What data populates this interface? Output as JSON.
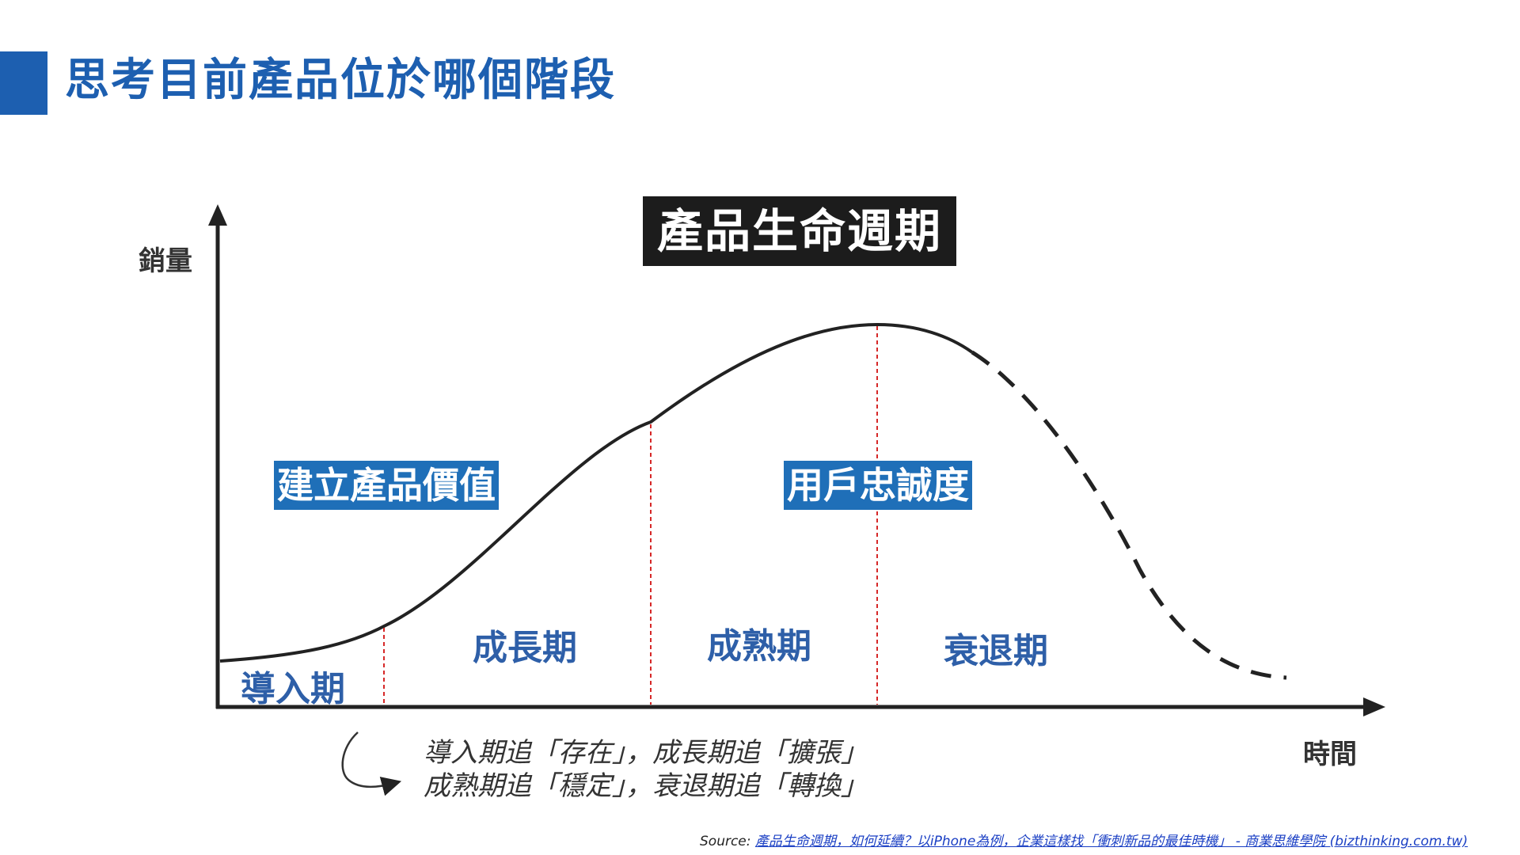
{
  "page": {
    "title": "思考目前產品位於哪個階段",
    "accent_color": "#1d5fb0"
  },
  "diagram": {
    "chart_title": "產品生命週期",
    "y_axis_label": "銷量",
    "x_axis_label": "時間",
    "phases": {
      "intro": "導入期",
      "growth": "成長期",
      "maturity": "成熟期",
      "decline": "衰退期"
    },
    "highlights": {
      "value": "建立產品價值",
      "loyalty": "用戶忠誠度"
    },
    "notes": {
      "line1": "導入期追「存在」，成長期追「擴張」",
      "line2": "成熟期追「穩定」，衰退期追「轉換」"
    },
    "colors": {
      "curve": "#222222",
      "divider": "#d62828",
      "phase_text": "#2e5fa8",
      "highlight_bg": "#1f6fb8"
    }
  },
  "source": {
    "prefix": "Source: ",
    "link_text": "產品生命週期，如何延續？以iPhone為例，企業這樣找「衝刺新品的最佳時機」 - 商業思維學院 (bizthinking.com.tw)"
  }
}
